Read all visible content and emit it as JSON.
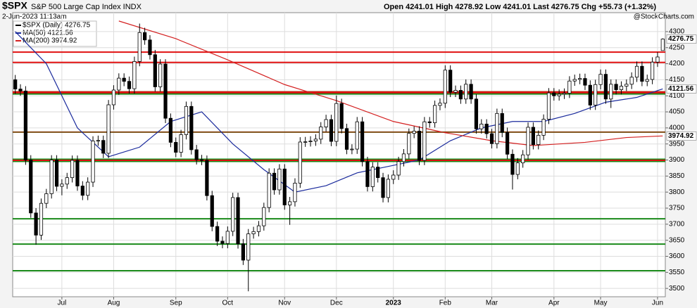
{
  "chart_data": {
    "type": "candlestick",
    "title": "$SPX",
    "subtitle": "S&P 500 Large Cap Index INDX",
    "date_text": "2-Jun-2023 11:13am",
    "quote": "Open 4241.01  High 4278.92  Low 4241.01  Last 4276.75  Chg +55.73 (+1.32%)",
    "watermark": "@StockCharts.com",
    "candle_name": "$SPX (Daily) 4276.75",
    "candle_color": "#000000",
    "open": [
      4150,
      4121,
      4115,
      3900,
      3735,
      3666,
      3765,
      3795,
      3900,
      3818,
      3825,
      3845,
      3899,
      3819,
      3790,
      3831,
      3959,
      3961,
      3921,
      4072,
      4118,
      4155,
      4145,
      4122,
      4207,
      4297,
      4274,
      4228,
      4128,
      4199,
      4030,
      3955,
      3924,
      3979,
      4067,
      3932,
      3901,
      3899,
      3789,
      3693,
      3647,
      3640,
      3678,
      3783,
      3639,
      3588,
      3670,
      3677,
      3695,
      3752,
      3859,
      3807,
      3872,
      3760,
      3770,
      3828,
      3956,
      3957,
      3959,
      3965,
      4003,
      4026,
      3958,
      4076,
      3998,
      3933,
      3934,
      4019,
      3895,
      3817,
      3878,
      3845,
      3783,
      3840,
      3853,
      3895,
      3919,
      3983,
      3990,
      3899,
      4019,
      4016,
      4070,
      4077,
      4180,
      4111,
      4117,
      4090,
      4136,
      4090,
      3997,
      4012,
      3982,
      3951,
      4045,
      3986,
      3918,
      3855,
      3891,
      3916,
      4002,
      3948,
      3977,
      4027,
      4109,
      4100,
      4105,
      4108,
      4146,
      4151,
      4154,
      4133,
      4071,
      4135,
      4167,
      4090,
      4136,
      4119,
      4130,
      4136,
      4158,
      4192,
      4145,
      4151,
      4205,
      4241.01
    ],
    "high": [
      4165,
      4136,
      4130,
      3915,
      3750,
      3780,
      3810,
      3915,
      3915,
      3840,
      3860,
      3914,
      3914,
      3834,
      3846,
      3974,
      3976,
      3976,
      4087,
      4133,
      4170,
      4170,
      4160,
      4222,
      4325,
      4312,
      4289,
      4243,
      4214,
      4214,
      4045,
      3970,
      3994,
      4082,
      4082,
      3947,
      3916,
      3914,
      3804,
      3708,
      3662,
      3693,
      3798,
      3798,
      3654,
      3685,
      3692,
      3710,
      3767,
      3874,
      3874,
      3887,
      3887,
      3785,
      3843,
      3971,
      3972,
      3974,
      3980,
      4018,
      4041,
      4041,
      4101,
      4091,
      4013,
      3949,
      4034,
      4034,
      3910,
      3893,
      3893,
      3860,
      3855,
      3868,
      3910,
      3934,
      3998,
      4005,
      4005,
      4034,
      4034,
      4085,
      4092,
      4195,
      4195,
      4132,
      4132,
      4151,
      4151,
      4105,
      4027,
      4027,
      3997,
      4060,
      4060,
      4001,
      3933,
      3906,
      3931,
      4017,
      4017,
      3992,
      4042,
      4124,
      4124,
      4120,
      4123,
      4161,
      4166,
      4169,
      4169,
      4148,
      4150,
      4182,
      4182,
      4151,
      4151,
      4145,
      4151,
      4173,
      4207,
      4207,
      4166,
      4220,
      4236,
      4278.92
    ],
    "low": [
      4106,
      4100,
      3885,
      3720,
      3636,
      3651,
      3750,
      3780,
      3803,
      3790,
      3810,
      3830,
      3804,
      3775,
      3775,
      3816,
      3944,
      3906,
      3906,
      4057,
      4103,
      4130,
      4107,
      4107,
      4192,
      4259,
      4213,
      4113,
      4113,
      4015,
      3940,
      3909,
      3909,
      3964,
      3917,
      3886,
      3884,
      3774,
      3678,
      3632,
      3625,
      3625,
      3663,
      3624,
      3573,
      3491,
      3655,
      3662,
      3680,
      3737,
      3792,
      3792,
      3745,
      3698,
      3755,
      3813,
      3941,
      3942,
      3944,
      3950,
      3988,
      3943,
      3943,
      3983,
      3918,
      3918,
      3919,
      3880,
      3802,
      3802,
      3830,
      3768,
      3768,
      3825,
      3838,
      3880,
      3904,
      3968,
      3884,
      3884,
      4001,
      4001,
      4055,
      4062,
      4096,
      4096,
      4075,
      4075,
      4075,
      3982,
      3982,
      3967,
      3936,
      3936,
      3971,
      3903,
      3808,
      3840,
      3876,
      3901,
      3933,
      3933,
      3962,
      4012,
      4085,
      4085,
      4090,
      4093,
      4131,
      4136,
      4118,
      4056,
      4056,
      4120,
      4075,
      4062,
      4104,
      4104,
      4115,
      4121,
      4143,
      4130,
      4130,
      4136,
      4190,
      4241.01
    ],
    "close": [
      4121,
      4115,
      3900,
      3735,
      3666,
      3765,
      3795,
      3900,
      3818,
      3825,
      3845,
      3899,
      3819,
      3790,
      3831,
      3959,
      3961,
      3921,
      4072,
      4118,
      4155,
      4145,
      4122,
      4207,
      4297,
      4274,
      4228,
      4128,
      4199,
      4030,
      3955,
      3924,
      3979,
      4067,
      3932,
      3901,
      3899,
      3789,
      3693,
      3647,
      3640,
      3678,
      3783,
      3639,
      3588,
      3670,
      3677,
      3695,
      3752,
      3859,
      3807,
      3872,
      3760,
      3770,
      3828,
      3956,
      3957,
      3959,
      3965,
      4003,
      4026,
      3958,
      4076,
      3998,
      3933,
      3934,
      4019,
      3895,
      3817,
      3878,
      3845,
      3783,
      3840,
      3853,
      3895,
      3919,
      3983,
      3990,
      3899,
      4019,
      4016,
      4070,
      4077,
      4180,
      4111,
      4117,
      4090,
      4136,
      4090,
      3997,
      4012,
      3982,
      3951,
      4045,
      3986,
      3918,
      3855,
      3891,
      3916,
      4002,
      3948,
      3977,
      4027,
      4109,
      4100,
      4105,
      4108,
      4146,
      4151,
      4154,
      4133,
      4071,
      4135,
      4167,
      4090,
      4136,
      4119,
      4130,
      4136,
      4158,
      4192,
      4145,
      4151,
      4205,
      4221,
      4276.75
    ],
    "lines": [
      {
        "name": "MA(50) 4121.56",
        "color": "#1a2a9c",
        "x": [
          0,
          6,
          12,
          18,
          24,
          30,
          36,
          42,
          48,
          54,
          60,
          66,
          72,
          78,
          84,
          90,
          96,
          102,
          108,
          114,
          120,
          125
        ],
        "values": [
          4300,
          4200,
          4000,
          3910,
          3940,
          4020,
          4050,
          3950,
          3870,
          3800,
          3820,
          3860,
          3880,
          3900,
          3960,
          4000,
          4020,
          4020,
          4045,
          4080,
          4095,
          4121.56
        ]
      },
      {
        "name": "MA(200) 3974.92",
        "color": "#d42020",
        "x": [
          20,
          31,
          41,
          52,
          62,
          73,
          83,
          92,
          100,
          110,
          118,
          125
        ],
        "values": [
          4333,
          4278,
          4212,
          4135,
          4085,
          4020,
          3985,
          3960,
          3945,
          3955,
          3970,
          3974.92
        ]
      }
    ],
    "hlines": [
      {
        "value": 3555,
        "color": "#1a8a1a",
        "width": 2
      },
      {
        "value": 3638,
        "color": "#1a8a1a",
        "width": 2
      },
      {
        "value": 3717,
        "color": "#1a8a1a",
        "width": 2
      },
      {
        "value": 3899,
        "color": "#1a8a1a",
        "width": 5
      },
      {
        "value": 3899,
        "color": "#e01010",
        "width": 2
      },
      {
        "value": 3987,
        "color": "#1a8a1a",
        "width": 2
      },
      {
        "value": 3987,
        "color": "#e01010",
        "width": 1
      },
      {
        "value": 4109,
        "color": "#1a8a1a",
        "width": 5
      },
      {
        "value": 4111,
        "color": "#e01010",
        "width": 3
      },
      {
        "value": 4204,
        "color": "#e01010",
        "width": 2
      },
      {
        "value": 4236,
        "color": "#e01010",
        "width": 2
      }
    ],
    "xlim": [
      -0.5,
      125.5
    ],
    "xticks": [
      {
        "value": 9,
        "label": "Jul"
      },
      {
        "value": 19,
        "label": "Aug"
      },
      {
        "value": 31,
        "label": "Sep"
      },
      {
        "value": 41,
        "label": "Oct"
      },
      {
        "value": 52,
        "label": "Nov"
      },
      {
        "value": 62,
        "label": "Dec"
      },
      {
        "value": 73,
        "label": "2023"
      },
      {
        "value": 83,
        "label": "Feb"
      },
      {
        "value": 92,
        "label": "Mar"
      },
      {
        "value": 104,
        "label": "Apr"
      },
      {
        "value": 113,
        "label": "May"
      },
      {
        "value": 124,
        "label": "Jun"
      }
    ],
    "ylim": [
      3474,
      4359
    ],
    "yticks": [
      3500,
      3550,
      3600,
      3650,
      3700,
      3750,
      3800,
      3850,
      3900,
      3950,
      4000,
      4050,
      4100,
      4150,
      4200,
      4250,
      4300
    ],
    "grid": true
  }
}
